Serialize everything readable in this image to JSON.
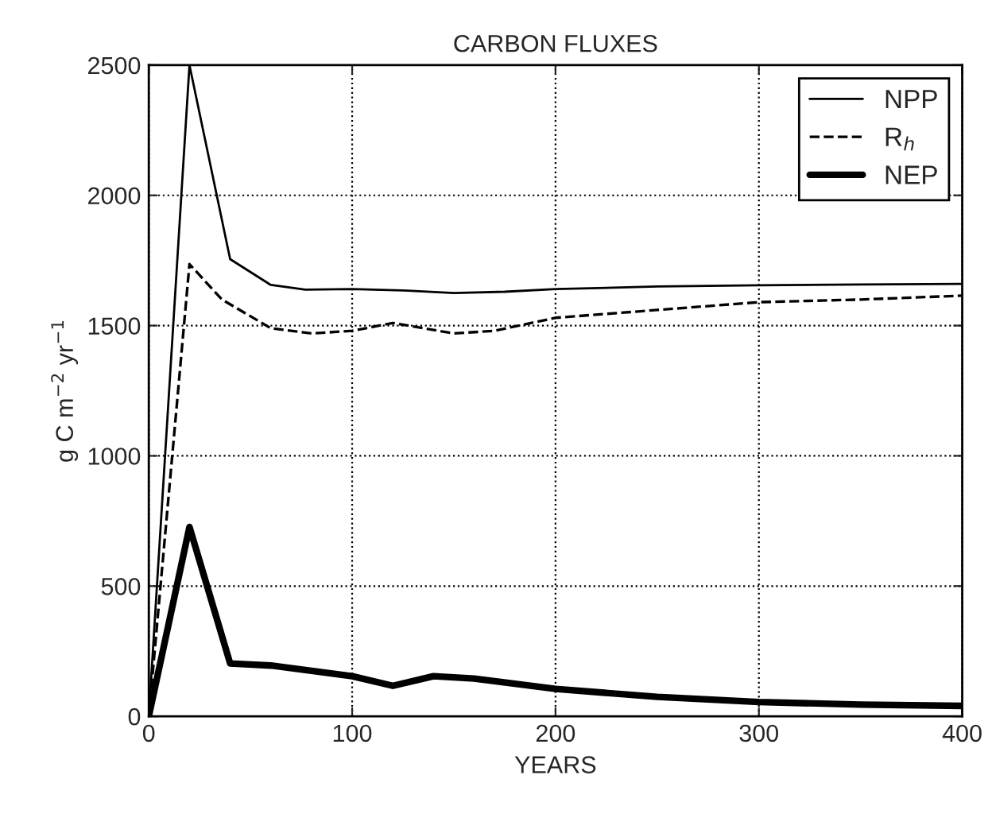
{
  "chart_data": {
    "type": "line",
    "title": "CARBON FLUXES",
    "xlabel": "YEARS",
    "ylabel": "g C m$^{−2}$ yr$^{−1}$",
    "xlim": [
      0,
      400
    ],
    "xticks": [
      0,
      100,
      200,
      300,
      400
    ],
    "ylim": [
      0,
      2500
    ],
    "yticks": [
      0,
      500,
      1000,
      1500,
      2000,
      2500
    ],
    "grid": true,
    "legend": "top right",
    "series": [
      {
        "name": "NPP",
        "color": "#000000",
        "line_style": "solid",
        "x": [
          0,
          20,
          40,
          60,
          77,
          100,
          125,
          150,
          175,
          200,
          250,
          300,
          350,
          400
        ],
        "values": [
          0,
          2500,
          1755,
          1656,
          1638,
          1640,
          1635,
          1625,
          1630,
          1640,
          1650,
          1655,
          1658,
          1660
        ]
      },
      {
        "name": "R$_{h}$",
        "color": "#000000",
        "line_style": "dashed",
        "x": [
          0,
          20,
          36,
          60,
          80,
          100,
          120,
          150,
          170,
          200,
          250,
          300,
          350,
          400
        ],
        "values": [
          0,
          1736,
          1600,
          1490,
          1470,
          1480,
          1510,
          1470,
          1480,
          1530,
          1560,
          1590,
          1600,
          1615
        ]
      },
      {
        "name": "NEP",
        "color": "#000000",
        "line_style": "solid",
        "x": [
          0,
          20,
          40,
          60,
          80,
          100,
          120,
          140,
          160,
          200,
          250,
          300,
          350,
          400
        ],
        "values": [
          0,
          727,
          203,
          195,
          175,
          154,
          117,
          154,
          145,
          105,
          75,
          55,
          45,
          40
        ]
      }
    ]
  }
}
